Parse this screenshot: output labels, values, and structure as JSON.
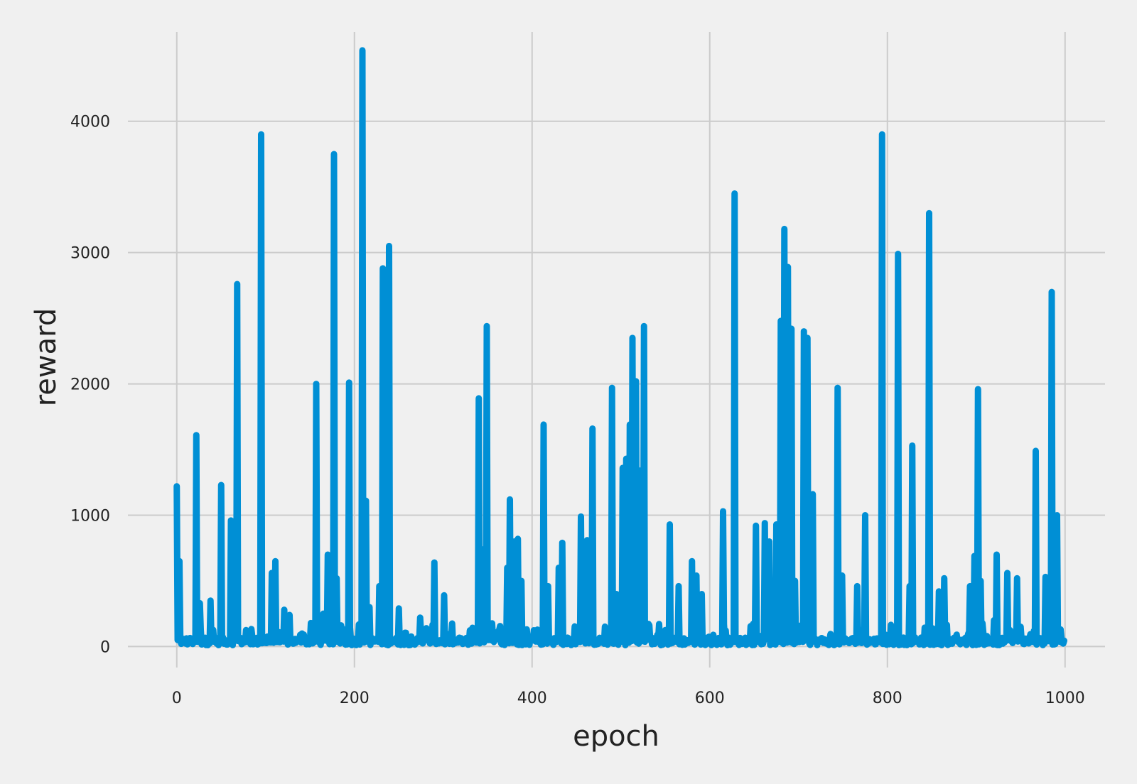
{
  "chart_data": {
    "type": "line",
    "title": "",
    "xlabel": "epoch",
    "ylabel": "reward",
    "xlim": [
      -55,
      1045
    ],
    "ylim": [
      -160,
      4680
    ],
    "xticks": [
      0,
      200,
      400,
      600,
      800,
      1000
    ],
    "yticks": [
      0,
      1000,
      2000,
      3000,
      4000
    ],
    "grid": true,
    "legend": "none",
    "series": [
      {
        "color": "#008fd5",
        "peaks": [
          [
            0,
            1220
          ],
          [
            3,
            650
          ],
          [
            22,
            1610
          ],
          [
            26,
            330
          ],
          [
            38,
            350
          ],
          [
            50,
            1230
          ],
          [
            61,
            960
          ],
          [
            68,
            2760
          ],
          [
            95,
            3900
          ],
          [
            107,
            560
          ],
          [
            111,
            650
          ],
          [
            121,
            280
          ],
          [
            127,
            240
          ],
          [
            157,
            2000
          ],
          [
            165,
            250
          ],
          [
            170,
            700
          ],
          [
            177,
            3750
          ],
          [
            180,
            520
          ],
          [
            194,
            2010
          ],
          [
            209,
            4540
          ],
          [
            213,
            1110
          ],
          [
            217,
            300
          ],
          [
            228,
            460
          ],
          [
            232,
            2880
          ],
          [
            239,
            3050
          ],
          [
            250,
            290
          ],
          [
            274,
            220
          ],
          [
            290,
            640
          ],
          [
            301,
            390
          ],
          [
            340,
            1890
          ],
          [
            344,
            740
          ],
          [
            349,
            2440
          ],
          [
            372,
            600
          ],
          [
            375,
            1120
          ],
          [
            380,
            800
          ],
          [
            384,
            820
          ],
          [
            388,
            500
          ],
          [
            413,
            1690
          ],
          [
            418,
            460
          ],
          [
            430,
            600
          ],
          [
            434,
            790
          ],
          [
            455,
            990
          ],
          [
            462,
            810
          ],
          [
            468,
            1660
          ],
          [
            490,
            1970
          ],
          [
            495,
            400
          ],
          [
            502,
            1360
          ],
          [
            506,
            1430
          ],
          [
            510,
            1690
          ],
          [
            513,
            2350
          ],
          [
            517,
            2020
          ],
          [
            521,
            1340
          ],
          [
            526,
            2440
          ],
          [
            555,
            930
          ],
          [
            565,
            460
          ],
          [
            580,
            650
          ],
          [
            585,
            540
          ],
          [
            591,
            400
          ],
          [
            615,
            1030
          ],
          [
            628,
            3450
          ],
          [
            652,
            920
          ],
          [
            662,
            940
          ],
          [
            667,
            800
          ],
          [
            675,
            930
          ],
          [
            680,
            2480
          ],
          [
            684,
            3180
          ],
          [
            688,
            2890
          ],
          [
            692,
            2420
          ],
          [
            696,
            500
          ],
          [
            706,
            2400
          ],
          [
            710,
            2350
          ],
          [
            716,
            1160
          ],
          [
            744,
            1970
          ],
          [
            749,
            540
          ],
          [
            766,
            460
          ],
          [
            775,
            1000
          ],
          [
            794,
            3900
          ],
          [
            812,
            2990
          ],
          [
            825,
            460
          ],
          [
            828,
            1530
          ],
          [
            847,
            3300
          ],
          [
            858,
            420
          ],
          [
            864,
            520
          ],
          [
            893,
            460
          ],
          [
            898,
            690
          ],
          [
            902,
            1960
          ],
          [
            905,
            500
          ],
          [
            920,
            200
          ],
          [
            923,
            700
          ],
          [
            935,
            560
          ],
          [
            946,
            520
          ],
          [
            967,
            1490
          ],
          [
            978,
            530
          ],
          [
            985,
            2700
          ],
          [
            991,
            1000
          ],
          [
            995,
            130
          ]
        ]
      }
    ]
  }
}
